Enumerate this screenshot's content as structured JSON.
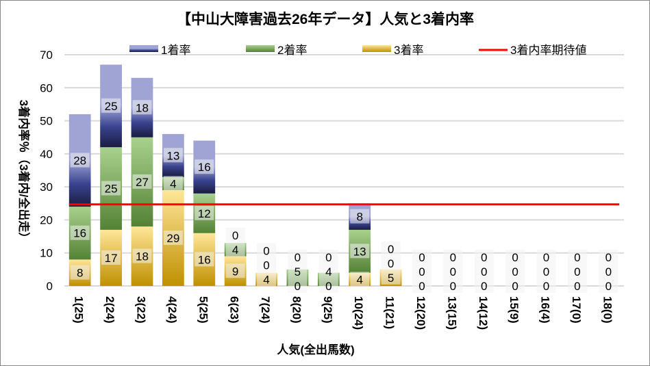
{
  "chart_data": {
    "type": "bar",
    "stacked": true,
    "title": "【中山大障害過去26年データ】人気と3着内率",
    "xlabel": "人気(全出馬数)",
    "ylabel": "3着内率％（3着内/全出走）",
    "ylim": [
      0,
      70
    ],
    "yticks": [
      0,
      10,
      20,
      30,
      40,
      50,
      60,
      70
    ],
    "grid": true,
    "legend_position": "top",
    "categories": [
      "1(25)",
      "2(24)",
      "3(22)",
      "4(24)",
      "5(25)",
      "6(23)",
      "7(24)",
      "8(20)",
      "9(25)",
      "10(24)",
      "11(21)",
      "12(20)",
      "13(15)",
      "14(12)",
      "15(9)",
      "16(4)",
      "17(0)",
      "18(0)"
    ],
    "series": [
      {
        "name": "3着率",
        "color": "#e8c060",
        "values": [
          8,
          17,
          18,
          29,
          16,
          9,
          4,
          0,
          0,
          4,
          5,
          0,
          0,
          0,
          0,
          0,
          0,
          0
        ]
      },
      {
        "name": "2着率",
        "color": "#70a050",
        "values": [
          16,
          25,
          27,
          4,
          12,
          4,
          0,
          5,
          4,
          13,
          0,
          0,
          0,
          0,
          0,
          0,
          0,
          0
        ]
      },
      {
        "name": "1着率",
        "color": "#4a52a0",
        "values": [
          28,
          25,
          18,
          13,
          16,
          0,
          0,
          0,
          0,
          8,
          0,
          0,
          0,
          0,
          0,
          0,
          0,
          0
        ]
      }
    ],
    "line": {
      "name": "3着内率期待値",
      "color": "#ff0000",
      "value": 24.7
    }
  }
}
